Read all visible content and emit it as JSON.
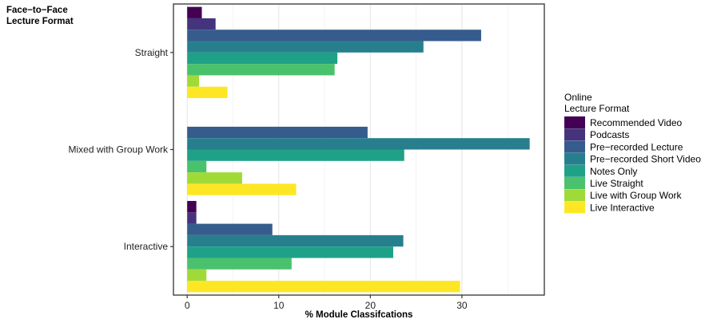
{
  "chart_data": {
    "type": "bar",
    "orientation": "horizontal",
    "y_title_lines": [
      "Face−to−Face",
      "Lecture Format"
    ],
    "xlabel": "% Module  Classifcations",
    "xlim": [
      -1.5,
      39
    ],
    "xticks": [
      0,
      10,
      20,
      30
    ],
    "categories": [
      "Straight",
      "Mixed with Group Work",
      "Interactive"
    ],
    "legend_title_lines": [
      "Online",
      "Lecture Format"
    ],
    "legend_position": "right",
    "grid": true,
    "series": [
      {
        "name": "Recommended Video",
        "color": "#440154",
        "values": [
          1.6,
          0,
          1.0
        ]
      },
      {
        "name": "Podcasts",
        "color": "#46337e",
        "values": [
          3.1,
          0,
          1.0
        ]
      },
      {
        "name": "Pre−recorded Lecture",
        "color": "#365c8d",
        "values": [
          32.1,
          19.7,
          9.3
        ]
      },
      {
        "name": "Pre−recorded Short Video",
        "color": "#277f8e",
        "values": [
          25.8,
          37.4,
          23.6
        ]
      },
      {
        "name": "Notes Only",
        "color": "#1fa187",
        "values": [
          16.4,
          23.7,
          22.5
        ]
      },
      {
        "name": "Live Straight",
        "color": "#4ac16d",
        "values": [
          16.1,
          2.1,
          11.4
        ]
      },
      {
        "name": "Live with Group Work",
        "color": "#a0da39",
        "values": [
          1.3,
          6.0,
          2.1
        ]
      },
      {
        "name": "Live Interactive",
        "color": "#fde725",
        "values": [
          4.4,
          11.9,
          29.8
        ]
      }
    ]
  }
}
